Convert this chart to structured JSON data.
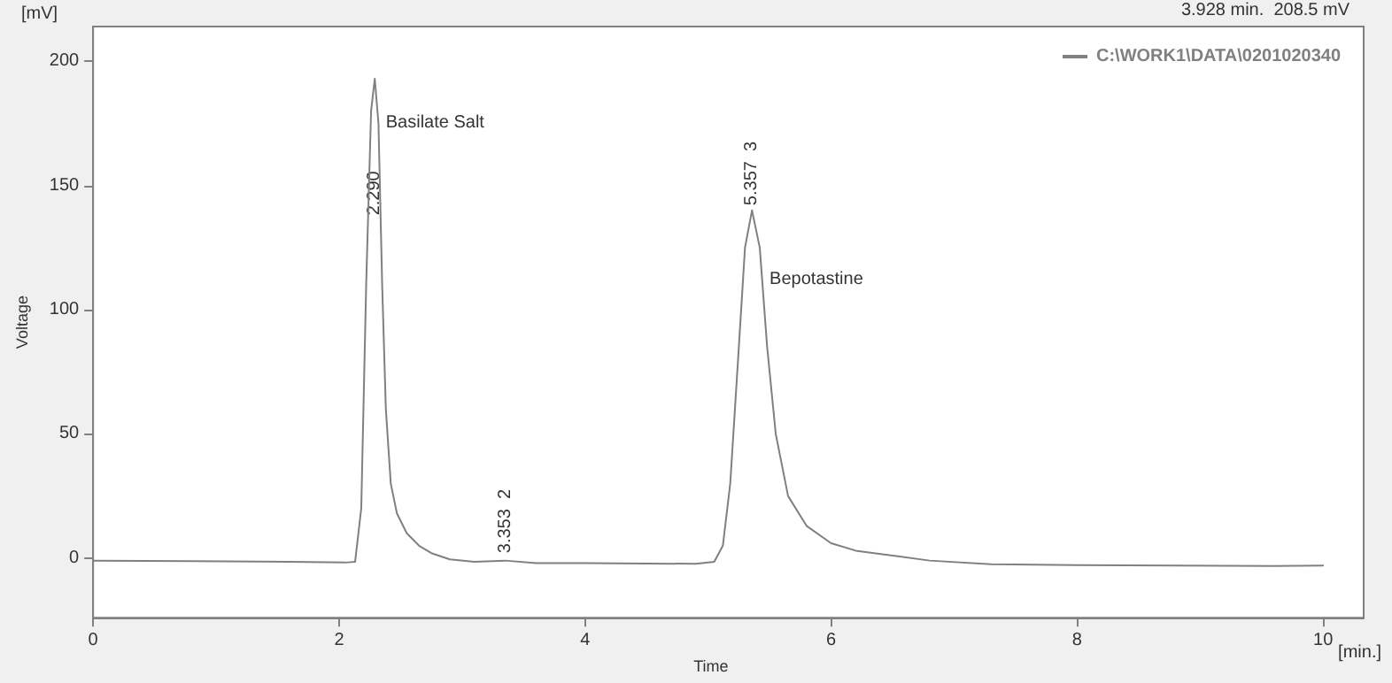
{
  "chart_data": {
    "type": "line",
    "xlabel": "Time",
    "ylabel": "Voltage",
    "annotations": [
      "[mV]",
      "3.928 min.  208.5 mV",
      "[min.]",
      {
        "text": "2.290",
        "x": 2.29,
        "y": 138
      },
      {
        "text": "Basilate Salt",
        "x": 2.38,
        "y": 175
      },
      {
        "text": "3.353  2",
        "x": 3.353,
        "y": 2
      },
      {
        "text": "5.357  3",
        "x": 5.357,
        "y": 142
      },
      {
        "text": "Bepotastine",
        "x": 5.5,
        "y": 112
      }
    ],
    "xlim": [
      0,
      10.33
    ],
    "xticks": [
      0,
      2,
      4,
      6,
      8,
      10
    ],
    "ylim": [
      -24,
      214
    ],
    "yticks": [
      0,
      50,
      100,
      150,
      200
    ],
    "grid": false,
    "legend": "top right",
    "marker": "none",
    "line_style": "solid",
    "series": [
      {
        "name": "C:\\WORK1\\DATA\\0201020340",
        "color": "#808080",
        "x": [
          0,
          0.8,
          1.6,
          2.05,
          2.13,
          2.18,
          2.22,
          2.26,
          2.29,
          2.32,
          2.35,
          2.38,
          2.42,
          2.47,
          2.55,
          2.65,
          2.75,
          2.9,
          3.1,
          3.35,
          3.6,
          4.0,
          4.9,
          5.05,
          5.12,
          5.18,
          5.25,
          5.3,
          5.357,
          5.42,
          5.48,
          5.55,
          5.65,
          5.8,
          6.0,
          6.2,
          6.5,
          6.8,
          7.3,
          8,
          8.8,
          9.6,
          10
        ],
        "values": [
          -1,
          -1.2,
          -1.5,
          -1.8,
          -1.5,
          20,
          110,
          180,
          193,
          175,
          110,
          60,
          30,
          18,
          10,
          5,
          2,
          -0.5,
          -1.5,
          -1,
          -2,
          -2,
          -2.3,
          -1.5,
          5,
          30,
          85,
          125,
          140,
          125,
          85,
          50,
          25,
          13,
          6,
          3,
          1,
          -1,
          -2.5,
          -2.8,
          -3,
          -3.2,
          -3
        ]
      }
    ]
  }
}
